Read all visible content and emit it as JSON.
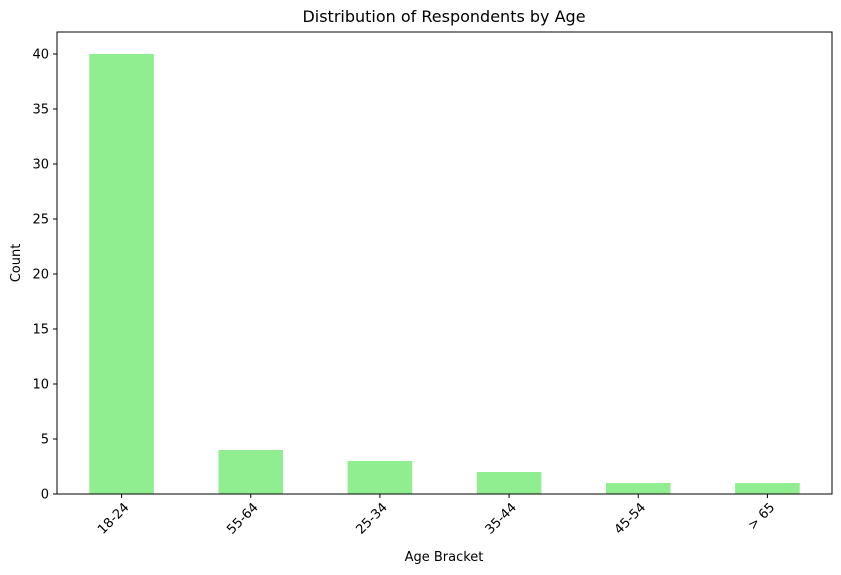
{
  "chart_data": {
    "type": "bar",
    "title": "Distribution of Respondents by Age",
    "xlabel": "Age Bracket",
    "ylabel": "Count",
    "categories": [
      "18-24",
      "55-64",
      "25-34",
      "35-44",
      "45-54",
      "> 65"
    ],
    "values": [
      40,
      4,
      3,
      2,
      1,
      1
    ],
    "ylim": [
      0,
      42
    ],
    "yticks": [
      0,
      5,
      10,
      15,
      20,
      25,
      30,
      35,
      40
    ],
    "bar_color": "#90ee90",
    "grid": false,
    "legend": "none",
    "xtick_rotation": 45
  }
}
